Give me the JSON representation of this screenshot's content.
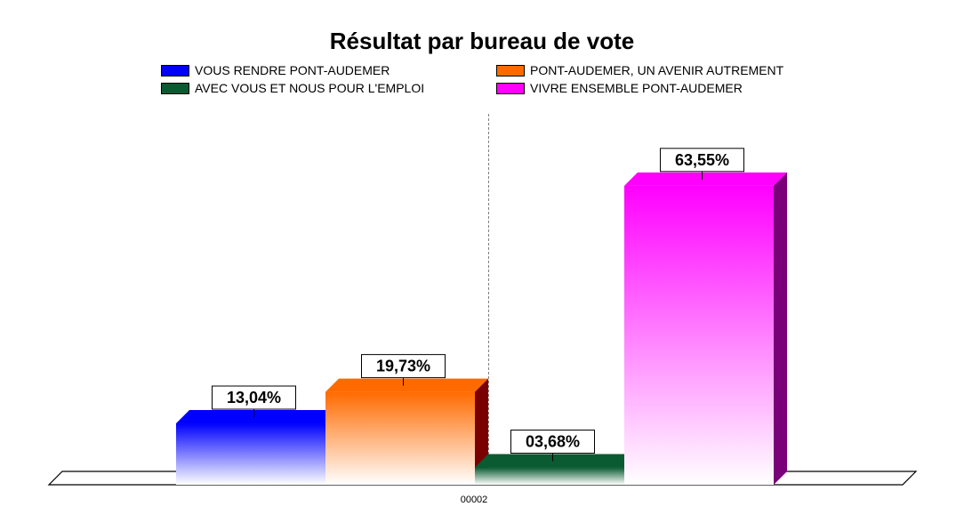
{
  "chart_data": {
    "type": "bar",
    "title": "Résultat par bureau de vote",
    "categories": [
      "00002"
    ],
    "series": [
      {
        "name": "VOUS RENDRE PONT-AUDEMER",
        "values": [
          13.04
        ],
        "label": "13,04%",
        "color": "#0000ff",
        "side_color": "#00007a"
      },
      {
        "name": "PONT-AUDEMER, UN AVENIR AUTREMENT",
        "values": [
          19.73
        ],
        "label": "19,73%",
        "color": "#ff6a00",
        "side_color": "#7a0000"
      },
      {
        "name": "AVEC VOUS ET NOUS POUR L'EMPLOI",
        "values": [
          3.68
        ],
        "label": "03,68%",
        "color": "#0a5a32",
        "side_color": "#053a1f"
      },
      {
        "name": "VIVRE ENSEMBLE PONT-AUDEMER",
        "values": [
          63.55
        ],
        "label": "63,55%",
        "color": "#ff00ff",
        "side_color": "#7a007a"
      }
    ],
    "xlabel": "",
    "ylabel": "",
    "ylim": [
      0,
      70
    ],
    "grid": false,
    "legend_position": "top"
  }
}
